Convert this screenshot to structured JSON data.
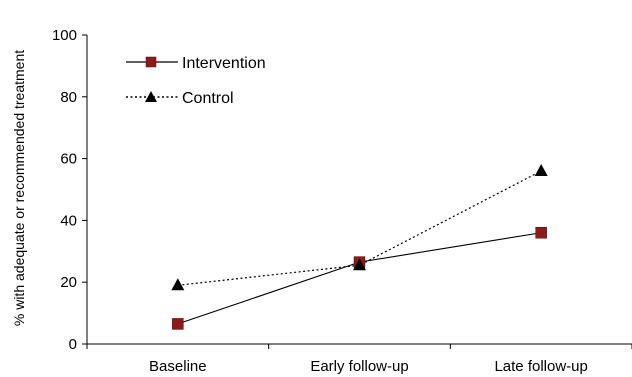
{
  "chart_data": {
    "type": "line",
    "title": "",
    "xlabel": "",
    "ylabel": "% with adequate or recommended treatment",
    "categories": [
      "Baseline",
      "Early follow-up",
      "Late follow-up"
    ],
    "ylim": [
      0,
      100
    ],
    "yticks": [
      "0",
      "20",
      "40",
      "60",
      "80",
      "100"
    ],
    "grid": false,
    "legend_position": "top-left",
    "series": [
      {
        "name": "Intervention",
        "values": [
          6.5,
          26.5,
          36
        ],
        "marker": "square",
        "line": "solid",
        "color": "#8b1a1a"
      },
      {
        "name": "Control",
        "values": [
          19,
          25.5,
          56
        ],
        "marker": "triangle",
        "line": "dotted",
        "color": "#000000"
      }
    ]
  }
}
